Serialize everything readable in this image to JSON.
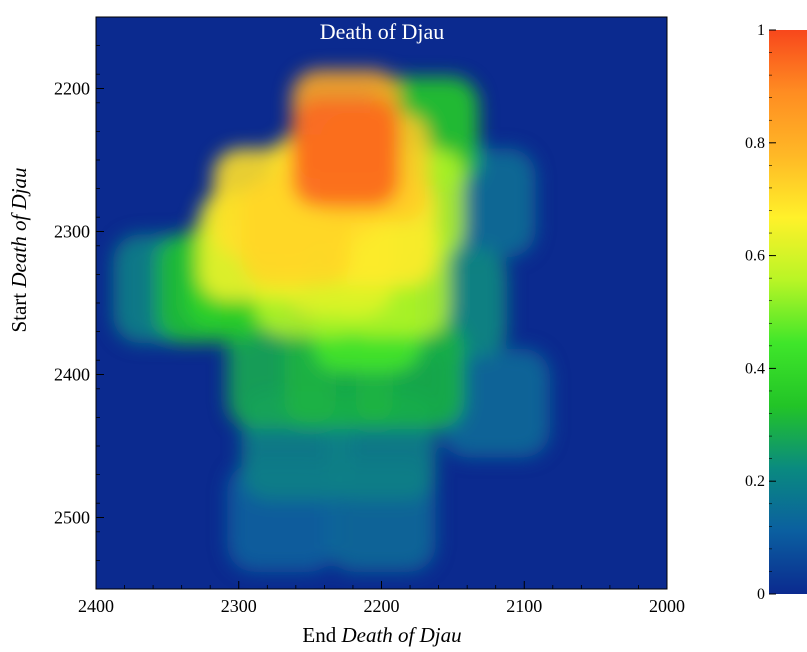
{
  "chart_data": {
    "type": "heatmap",
    "title": "Death of Djau",
    "xlabel": {
      "prefix": "End ",
      "italic": "Death of Djau"
    },
    "ylabel": {
      "prefix": "Start ",
      "italic": "Death of Djau"
    },
    "xlim": [
      2400,
      2000
    ],
    "ylim": [
      2150,
      2550
    ],
    "x_reversed": true,
    "y_inverted": true,
    "x_ticks": [
      "2400",
      "2300",
      "2200",
      "2100",
      "2000"
    ],
    "y_ticks": [
      "2200",
      "2300",
      "2400",
      "2500"
    ],
    "colorbar": {
      "range": [
        0,
        1
      ],
      "ticks": [
        "0",
        "0.2",
        "0.4",
        "0.6",
        "0.8",
        "1"
      ],
      "colors": [
        "#0b2a8f",
        "#0b5fa0",
        "#0a8a80",
        "#22c427",
        "#3fe62a",
        "#b8f526",
        "#fff12a",
        "#ffb826",
        "#ff8d22",
        "#f8471c"
      ]
    },
    "grid": false,
    "peak": {
      "end_x": 2225,
      "start_y": 2245,
      "value": 1.0
    },
    "cells": [
      [
        2260,
        2300,
        0.72
      ],
      [
        2240,
        2270,
        0.7
      ],
      [
        2225,
        2245,
        0.95
      ],
      [
        2225,
        2225,
        0.82
      ],
      [
        2205,
        2255,
        0.74
      ],
      [
        2200,
        2300,
        0.68
      ],
      [
        2230,
        2320,
        0.62
      ],
      [
        2280,
        2280,
        0.7
      ],
      [
        2290,
        2310,
        0.64
      ],
      [
        2250,
        2335,
        0.55
      ],
      [
        2190,
        2335,
        0.55
      ],
      [
        2210,
        2360,
        0.45
      ],
      [
        2180,
        2280,
        0.55
      ],
      [
        2300,
        2330,
        0.38
      ],
      [
        2320,
        2340,
        0.32
      ],
      [
        2350,
        2340,
        0.2
      ],
      [
        2180,
        2400,
        0.3
      ],
      [
        2230,
        2400,
        0.3
      ],
      [
        2270,
        2400,
        0.28
      ],
      [
        2170,
        2230,
        0.35
      ],
      [
        2200,
        2450,
        0.2
      ],
      [
        2260,
        2450,
        0.2
      ],
      [
        2150,
        2350,
        0.22
      ],
      [
        2130,
        2280,
        0.15
      ],
      [
        2120,
        2420,
        0.14
      ],
      [
        2200,
        2500,
        0.14
      ],
      [
        2270,
        2500,
        0.12
      ]
    ]
  }
}
